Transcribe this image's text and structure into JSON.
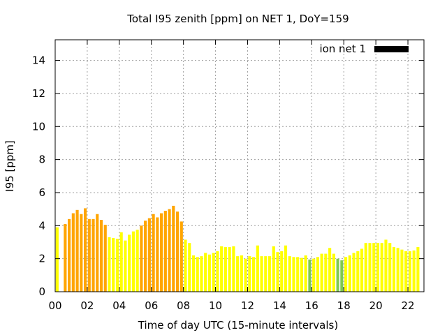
{
  "chart_data": {
    "type": "bar",
    "title": "Total I95 zenith [ppm] on NET 1, DoY=159",
    "xlabel": "Time of day UTC (15-minute intervals)",
    "ylabel": "I95 [ppm]",
    "xlim": [
      0,
      23
    ],
    "ylim": [
      0,
      15.25
    ],
    "x_ticks": [
      "00",
      "02",
      "04",
      "06",
      "08",
      "10",
      "12",
      "14",
      "16",
      "18",
      "20",
      "22"
    ],
    "y_ticks": [
      "0",
      "2",
      "4",
      "6",
      "8",
      "10",
      "12",
      "14"
    ],
    "grid": true,
    "legend": {
      "position": "top-right",
      "entries": [
        {
          "label": "ion net 1",
          "color": "#000000"
        }
      ]
    },
    "bar_interval_hours": 0.25,
    "colors": {
      "orange": "#ffa500",
      "yellow": "#ffff00",
      "green": "#7ec850"
    },
    "series": [
      {
        "name": "ion net 1",
        "x": [
          0.125,
          0.375,
          0.625,
          0.875,
          1.125,
          1.375,
          1.625,
          1.875,
          2.125,
          2.375,
          2.625,
          2.875,
          3.125,
          3.375,
          3.625,
          3.875,
          4.125,
          4.375,
          4.625,
          4.875,
          5.125,
          5.375,
          5.625,
          5.875,
          6.125,
          6.375,
          6.625,
          6.875,
          7.125,
          7.375,
          7.625,
          7.875,
          8.125,
          8.375,
          8.625,
          8.875,
          9.125,
          9.375,
          9.625,
          9.875,
          10.125,
          10.375,
          10.625,
          10.875,
          11.125,
          11.375,
          11.625,
          11.875,
          12.125,
          12.375,
          12.625,
          12.875,
          13.125,
          13.375,
          13.625,
          13.875,
          14.125,
          14.375,
          14.625,
          14.875,
          15.125,
          15.375,
          15.625,
          15.875,
          16.125,
          16.375,
          16.625,
          16.875,
          17.125,
          17.375,
          17.625,
          17.875,
          18.125,
          18.375,
          18.625,
          18.875,
          19.125,
          19.375,
          19.625,
          19.875,
          20.125,
          20.375,
          20.625,
          20.875,
          21.125,
          21.375,
          21.625,
          21.875,
          22.125,
          22.375,
          22.625,
          22.875
        ],
        "values": [
          3.9,
          null,
          4.1,
          4.4,
          4.75,
          4.95,
          4.7,
          5.05,
          4.4,
          4.4,
          4.7,
          4.35,
          4.05,
          3.3,
          3.25,
          3.2,
          3.6,
          3.1,
          3.45,
          3.65,
          3.75,
          4.0,
          4.3,
          4.45,
          4.7,
          4.5,
          4.75,
          4.9,
          5.0,
          5.2,
          4.85,
          4.25,
          3.15,
          2.95,
          2.2,
          2.1,
          2.15,
          2.35,
          2.25,
          2.35,
          2.45,
          2.75,
          2.7,
          2.7,
          2.75,
          2.15,
          2.2,
          2.0,
          2.15,
          2.1,
          2.8,
          2.15,
          2.15,
          2.15,
          2.75,
          2.4,
          2.45,
          2.8,
          2.15,
          2.1,
          2.1,
          2.05,
          2.2,
          1.95,
          2.0,
          2.1,
          2.3,
          2.3,
          2.65,
          2.3,
          2.0,
          1.9,
          2.1,
          2.2,
          2.35,
          2.45,
          2.6,
          2.95,
          2.95,
          2.95,
          2.95,
          2.95,
          3.15,
          2.95,
          2.7,
          2.65,
          2.55,
          2.45,
          2.45,
          2.5,
          2.7,
          null
        ],
        "bar_colors": [
          "yellow",
          null,
          "orange",
          "orange",
          "orange",
          "orange",
          "orange",
          "orange",
          "orange",
          "orange",
          "orange",
          "orange",
          "orange",
          "yellow",
          "yellow",
          "yellow",
          "yellow",
          "yellow",
          "yellow",
          "yellow",
          "yellow",
          "orange",
          "orange",
          "orange",
          "orange",
          "orange",
          "orange",
          "orange",
          "orange",
          "orange",
          "orange",
          "orange",
          "yellow",
          "yellow",
          "yellow",
          "yellow",
          "yellow",
          "yellow",
          "yellow",
          "yellow",
          "yellow",
          "yellow",
          "yellow",
          "yellow",
          "yellow",
          "yellow",
          "yellow",
          "yellow",
          "yellow",
          "yellow",
          "yellow",
          "yellow",
          "yellow",
          "yellow",
          "yellow",
          "yellow",
          "yellow",
          "yellow",
          "yellow",
          "yellow",
          "yellow",
          "yellow",
          "yellow",
          "green",
          "yellow",
          "yellow",
          "yellow",
          "yellow",
          "yellow",
          "yellow",
          "green",
          "green",
          "yellow",
          "yellow",
          "yellow",
          "yellow",
          "yellow",
          "yellow",
          "yellow",
          "yellow",
          "yellow",
          "yellow",
          "yellow",
          "yellow",
          "yellow",
          "yellow",
          "yellow",
          "yellow",
          "yellow",
          "yellow",
          "yellow",
          null
        ]
      }
    ]
  }
}
